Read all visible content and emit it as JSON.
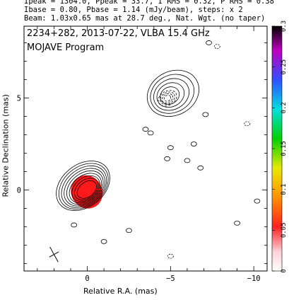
{
  "header": {
    "line1": "Ipeak = 1304.0, Ppeak = 33.7, I RMS = 0.32, P RMS = 0.38",
    "line2": "Ibase = 0.80, Pbase = 1.14 (mJy/beam), steps: x 2",
    "line3": "Beam: 1.03x0.65 mas at 28.7 deg., Nat. Wgt. (no taper)"
  },
  "chart_data": {
    "type": "contour",
    "title": "2234+282, 2013-07-22, VLBA 15.4 GHz",
    "subtitle": "MOJAVE Program",
    "xlabel": "Relative R.A. (mas)",
    "ylabel": "Relative Declination (mas)",
    "xlim": [
      3.8,
      -10.8
    ],
    "ylim": [
      -4.4,
      8.9
    ],
    "xticks": [
      0,
      -5,
      -10
    ],
    "yticks": [
      0,
      5
    ],
    "colorbar": {
      "range": [
        0,
        0.3
      ],
      "ticks": [
        0,
        0.05,
        0.1,
        0.15,
        0.2,
        0.25,
        0.3
      ]
    },
    "core": {
      "x": 0.0,
      "y": 0.0,
      "contours": 9,
      "polarized_region": "red"
    },
    "jet_component": {
      "x": -4.9,
      "y": 5.1,
      "contours": 5,
      "polarized_contours": "dashed"
    },
    "beam": {
      "major": 1.03,
      "minor": 0.65,
      "pa": 28.7
    },
    "beam_position": {
      "x": 2.0,
      "y": -3.5
    },
    "small_contours": [
      {
        "x": -7.3,
        "y": 8.0,
        "dashed": false
      },
      {
        "x": -7.8,
        "y": 7.8,
        "dashed": true
      },
      {
        "x": -9.6,
        "y": 3.6,
        "dashed": true
      },
      {
        "x": -7.1,
        "y": 4.1,
        "dashed": false
      },
      {
        "x": -6.4,
        "y": 2.5,
        "dashed": false
      },
      {
        "x": -3.8,
        "y": 3.1,
        "dashed": false
      },
      {
        "x": -5.0,
        "y": 2.3,
        "dashed": false
      },
      {
        "x": -4.8,
        "y": 1.7,
        "dashed": false
      },
      {
        "x": -6.0,
        "y": 1.6,
        "dashed": false
      },
      {
        "x": -6.8,
        "y": 1.2,
        "dashed": false
      },
      {
        "x": -3.5,
        "y": 3.3,
        "dashed": false
      },
      {
        "x": -9.0,
        "y": -1.8,
        "dashed": false
      },
      {
        "x": 0.8,
        "y": -1.9,
        "dashed": false
      },
      {
        "x": -1.0,
        "y": -2.8,
        "dashed": false
      },
      {
        "x": -2.5,
        "y": -2.2,
        "dashed": false
      },
      {
        "x": -5.0,
        "y": -3.6,
        "dashed": true
      },
      {
        "x": -10.2,
        "y": -0.6,
        "dashed": false
      }
    ]
  }
}
